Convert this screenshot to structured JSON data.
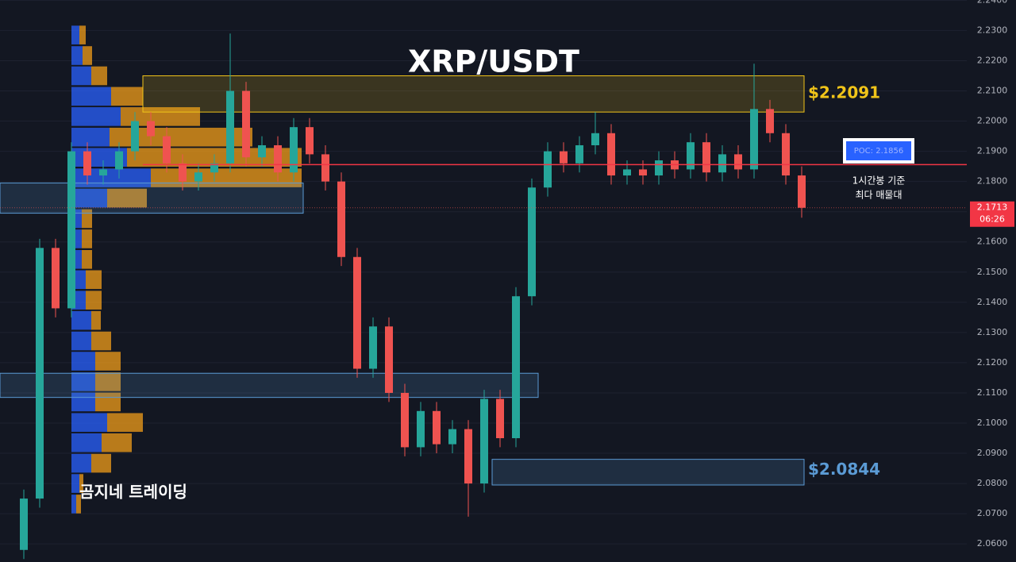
{
  "chart_data": {
    "type": "candlestick",
    "title": "XRP/USDT",
    "watermark": "곰지네 트레이딩",
    "ylim": [
      2.054,
      2.2401
    ],
    "yticks": [
      {
        "value": 2.06,
        "label": "2.0600"
      },
      {
        "value": 2.07,
        "label": "2.0700"
      },
      {
        "value": 2.08,
        "label": "2.0800"
      },
      {
        "value": 2.09,
        "label": "2.0900"
      },
      {
        "value": 2.1,
        "label": "2.1000"
      },
      {
        "value": 2.11,
        "label": "2.1100"
      },
      {
        "value": 2.12,
        "label": "2.1200"
      },
      {
        "value": 2.13,
        "label": "2.1300"
      },
      {
        "value": 2.14,
        "label": "2.1400"
      },
      {
        "value": 2.15,
        "label": "2.1500"
      },
      {
        "value": 2.16,
        "label": "2.1600"
      },
      {
        "value": 2.17,
        "label": "2.1700"
      },
      {
        "value": 2.18,
        "label": "2.1800"
      },
      {
        "value": 2.19,
        "label": "2.1900"
      },
      {
        "value": 2.2,
        "label": "2.2000"
      },
      {
        "value": 2.21,
        "label": "2.2100"
      },
      {
        "value": 2.22,
        "label": "2.2200"
      },
      {
        "value": 2.23,
        "label": "2.2300"
      },
      {
        "value": 2.24,
        "label": "2.2400"
      }
    ],
    "grid": true,
    "up_color": "#26a69a",
    "down_color": "#ef5350",
    "open": [
      2.058,
      2.075,
      2.158,
      2.138,
      2.19,
      2.182,
      2.184,
      2.19,
      2.2,
      2.195,
      2.186,
      2.18,
      2.183,
      2.186,
      2.21,
      2.188,
      2.192,
      2.183,
      2.198,
      2.189,
      2.18,
      2.155,
      2.118,
      2.132,
      2.11,
      2.092,
      2.104,
      2.093,
      2.098,
      2.08,
      2.108,
      2.095,
      2.142,
      2.178,
      2.19,
      2.186,
      2.192,
      2.196,
      2.182,
      2.184,
      2.182,
      2.187,
      2.184,
      2.193,
      2.183,
      2.189,
      2.184,
      2.204,
      2.196,
      2.182
    ],
    "high": [
      2.078,
      2.161,
      2.161,
      2.193,
      2.193,
      2.187,
      2.193,
      2.203,
      2.203,
      2.198,
      2.189,
      2.186,
      2.189,
      2.229,
      2.213,
      2.195,
      2.195,
      2.201,
      2.201,
      2.192,
      2.183,
      2.158,
      2.135,
      2.135,
      2.113,
      2.107,
      2.107,
      2.101,
      2.101,
      2.111,
      2.111,
      2.145,
      2.181,
      2.193,
      2.193,
      2.195,
      2.203,
      2.199,
      2.187,
      2.187,
      2.19,
      2.19,
      2.196,
      2.196,
      2.192,
      2.192,
      2.219,
      2.207,
      2.199,
      2.185
    ],
    "low": [
      2.055,
      2.072,
      2.135,
      2.135,
      2.179,
      2.179,
      2.181,
      2.187,
      2.192,
      2.183,
      2.177,
      2.177,
      2.18,
      2.183,
      2.185,
      2.185,
      2.18,
      2.18,
      2.186,
      2.177,
      2.152,
      2.115,
      2.115,
      2.107,
      2.089,
      2.089,
      2.09,
      2.09,
      2.069,
      2.077,
      2.092,
      2.092,
      2.139,
      2.175,
      2.183,
      2.183,
      2.189,
      2.179,
      2.179,
      2.179,
      2.179,
      2.181,
      2.181,
      2.18,
      2.18,
      2.181,
      2.181,
      2.193,
      2.179,
      2.168
    ],
    "close": [
      2.075,
      2.158,
      2.138,
      2.19,
      2.182,
      2.184,
      2.19,
      2.2,
      2.195,
      2.186,
      2.18,
      2.183,
      2.186,
      2.21,
      2.188,
      2.192,
      2.183,
      2.198,
      2.189,
      2.18,
      2.155,
      2.118,
      2.132,
      2.11,
      2.092,
      2.104,
      2.093,
      2.098,
      2.08,
      2.108,
      2.095,
      2.142,
      2.178,
      2.19,
      2.186,
      2.192,
      2.196,
      2.182,
      2.184,
      2.182,
      2.187,
      2.184,
      2.193,
      2.183,
      2.189,
      2.184,
      2.204,
      2.196,
      2.182,
      2.1713
    ],
    "volume_profile": {
      "prices": [
        2.2285,
        2.2217,
        2.215,
        2.2082,
        2.2015,
        2.1947,
        2.188,
        2.1812,
        2.1745,
        2.1677,
        2.161,
        2.1542,
        2.1475,
        2.1407,
        2.134,
        2.1272,
        2.1205,
        2.1137,
        2.107,
        2.1002,
        2.0935,
        2.0867,
        2.08,
        2.0732
      ],
      "buy": [
        10,
        14,
        25,
        50,
        62,
        48,
        70,
        100,
        45,
        13,
        13,
        13,
        18,
        18,
        25,
        25,
        30,
        30,
        30,
        45,
        38,
        25,
        10,
        6
      ],
      "sell": [
        8,
        12,
        20,
        40,
        100,
        180,
        220,
        190,
        50,
        13,
        13,
        13,
        20,
        20,
        12,
        25,
        32,
        32,
        32,
        45,
        38,
        25,
        5,
        6
      ],
      "buy_color": "#2962ff",
      "sell_color": "#f29d1a"
    },
    "zones": [
      {
        "low": 2.203,
        "high": 2.215,
        "color": "#f0c419",
        "label": "$2.2091",
        "label_value": 2.2091
      },
      {
        "low": 2.0795,
        "high": 2.088,
        "color": "#5b9bd5",
        "label": "$2.0844",
        "label_value": 2.0844
      },
      {
        "low": 2.1695,
        "high": 2.1795,
        "color": "#5b9bd5"
      },
      {
        "low": 2.1085,
        "high": 2.1165,
        "color": "#5b9bd5"
      }
    ],
    "poc": {
      "value": 2.1856,
      "label": "POC: 2.1856",
      "note_lines": [
        "1시간봉 기준",
        "최다 매물대"
      ]
    },
    "last_price": {
      "value": 2.1713,
      "label": "2.1713",
      "countdown": "06:26"
    }
  }
}
